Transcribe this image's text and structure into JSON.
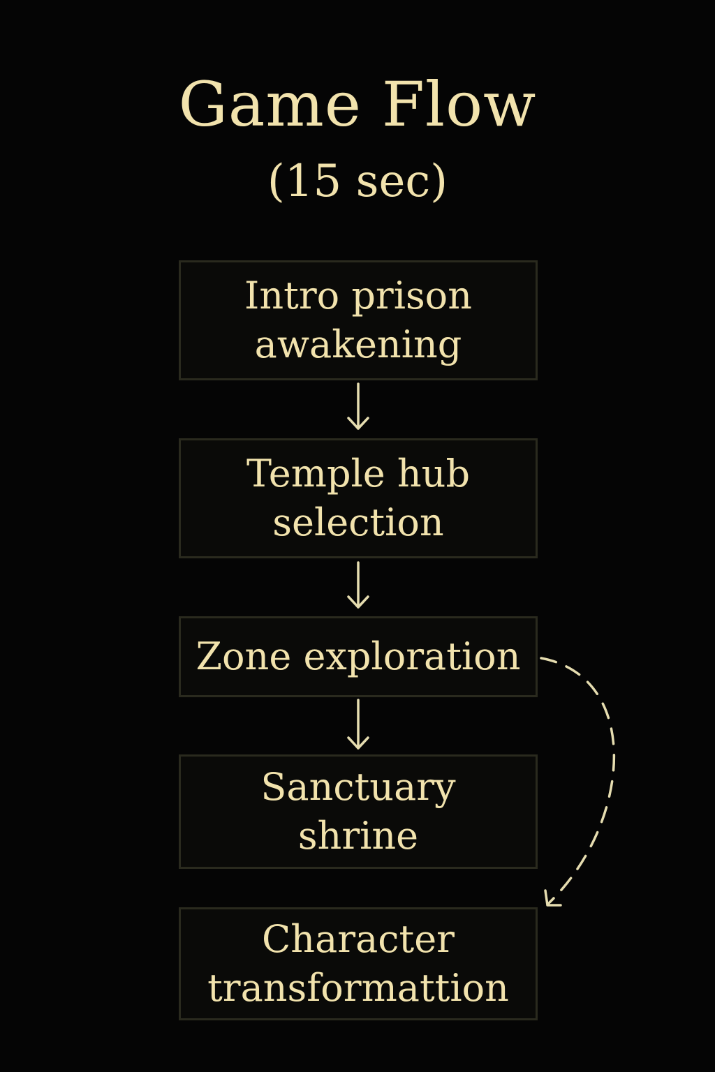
{
  "title": "Game Flow",
  "subtitle": "(15 sec)",
  "steps": [
    {
      "line1": "Intro prison",
      "line2": "awakening"
    },
    {
      "line1": "Temple hub",
      "line2": "selection"
    },
    {
      "line1": "Zone exploration",
      "line2": ""
    },
    {
      "line1": "Sanctuary",
      "line2": "shrine"
    },
    {
      "line1": "Character",
      "line2": "transformattion"
    }
  ],
  "colors": {
    "background": "#050505",
    "text": "#f2e3ad",
    "box_border": "#2a2a1e",
    "arrow": "#e6ddb0"
  }
}
